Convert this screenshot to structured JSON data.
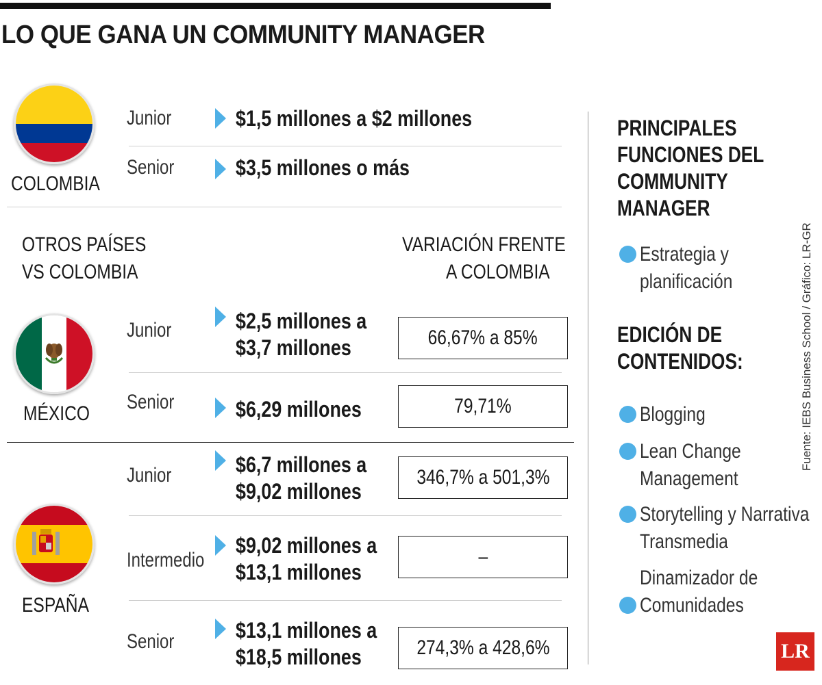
{
  "title": "LO QUE GANA UN COMMUNITY MANAGER",
  "colombia": {
    "name": "COLOMBIA",
    "rows": [
      {
        "level": "Junior",
        "amount": "$1,5 millones a $2 millones"
      },
      {
        "level": "Senior",
        "amount": "$3,5 millones o más"
      }
    ]
  },
  "comparison": {
    "left_heading": [
      "OTROS PAÍSES",
      "VS COLOMBIA"
    ],
    "right_heading": [
      "VARIACIÓN FRENTE",
      "A COLOMBIA"
    ]
  },
  "mexico": {
    "name": "MÉXICO",
    "rows": [
      {
        "level": "Junior",
        "amount": [
          "$2,5 millones a",
          "$3,7 millones"
        ],
        "variation": "66,67% a 85%"
      },
      {
        "level": "Senior",
        "amount": [
          "$6,29 millones"
        ],
        "variation": "79,71%"
      }
    ]
  },
  "espana": {
    "name": "ESPAÑA",
    "rows": [
      {
        "level": "Junior",
        "amount": [
          "$6,7 millones a",
          "$9,02 millones"
        ],
        "variation": "346,7% a 501,3%"
      },
      {
        "level": "Intermedio",
        "amount": [
          "$9,02 millones a",
          "$13,1 millones"
        ],
        "variation": "–"
      },
      {
        "level": "Senior",
        "amount": [
          "$13,1 millones a",
          "$18,5 millones"
        ],
        "variation": "274,3% a 428,6%"
      }
    ]
  },
  "sidebar": {
    "heading": [
      "PRINCIPALES",
      "FUNCIONES DEL",
      "COMMUNITY",
      "MANAGER"
    ],
    "item1": [
      "Estrategia y",
      "planificación"
    ],
    "edicion_heading": [
      "EDICIÓN DE",
      "CONTENIDOS:"
    ],
    "items": [
      {
        "lines": [
          "Blogging"
        ]
      },
      {
        "lines": [
          "Lean Change",
          "Management"
        ]
      },
      {
        "lines": [
          "Storytelling y Narrativa",
          "Transmedia"
        ]
      },
      {
        "lines": [
          "Dinamizador de",
          "Comunidades"
        ]
      }
    ]
  },
  "source": "Fuente: IEBS Business School / Gráfico: LR-GR",
  "logo": "LR",
  "colors": {
    "accent": "#4fb0e6",
    "logo_red": "#d7261e"
  }
}
